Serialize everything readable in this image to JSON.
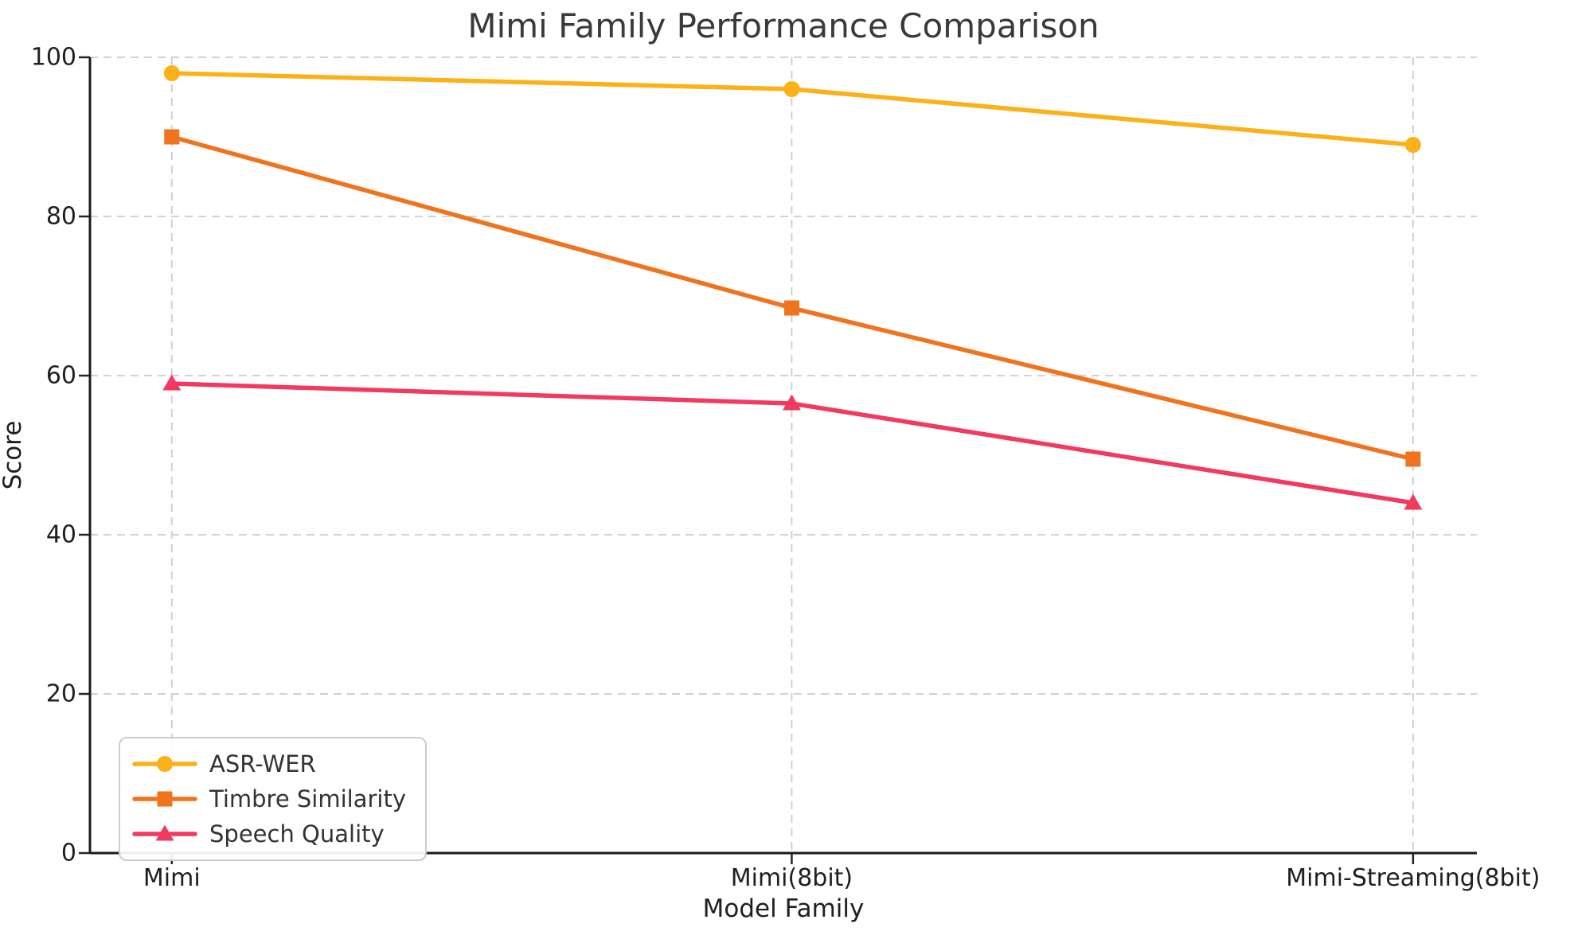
{
  "chart_data": {
    "type": "line",
    "title": "Mimi Family Performance Comparison",
    "xlabel": "Model Family",
    "ylabel": "Score",
    "categories": [
      "Mimi",
      "Mimi(8bit)",
      "Mimi-Streaming(8bit)"
    ],
    "series": [
      {
        "name": "ASR-WER",
        "marker": "circle",
        "color": "#FBB117",
        "values": [
          98,
          96,
          89
        ]
      },
      {
        "name": "Timbre Similarity",
        "marker": "square",
        "color": "#F0731E",
        "values": [
          90,
          68.5,
          49.5
        ]
      },
      {
        "name": "Speech Quality",
        "marker": "triangle",
        "color": "#F13A5F",
        "values": [
          59,
          56.5,
          44
        ]
      }
    ],
    "yticks": [
      0,
      20,
      40,
      60,
      80,
      100
    ],
    "ylim": [
      0,
      100
    ],
    "grid": "dashed, horizontal and vertical",
    "legend_position": "lower left",
    "colors": {
      "grid": "#cccccc",
      "spine": "#1a1a1a",
      "text": "#1f1f1f",
      "title": "#3a3a3a"
    }
  }
}
